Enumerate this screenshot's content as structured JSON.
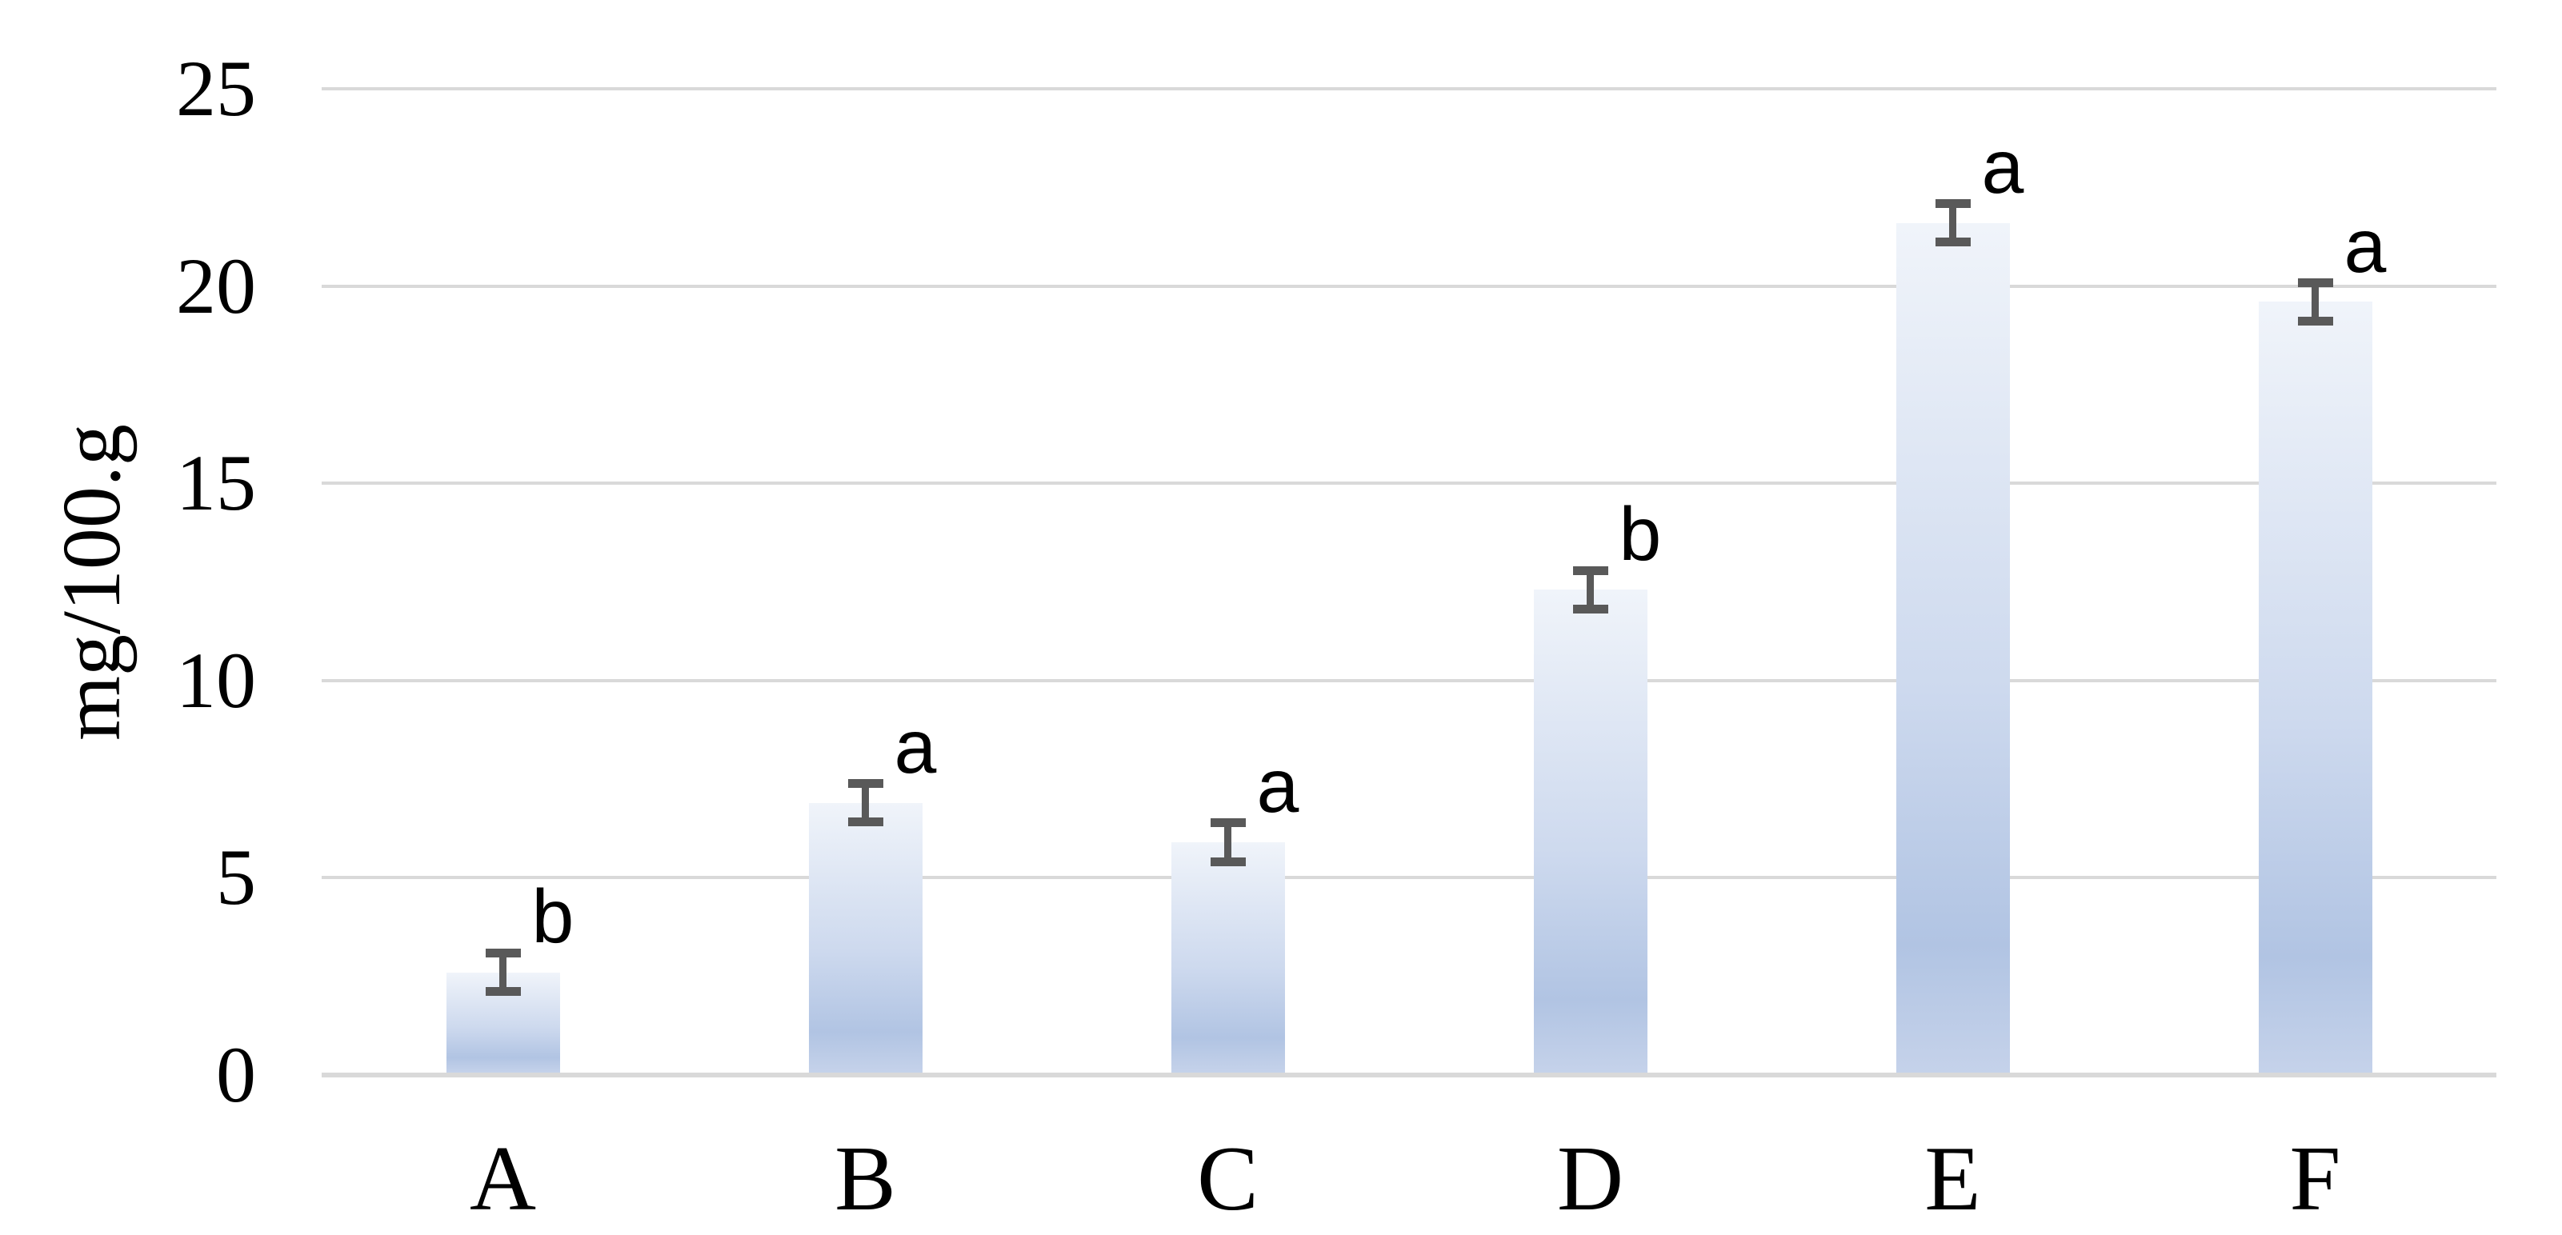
{
  "chart_data": {
    "type": "bar",
    "title": "",
    "categories": [
      "A",
      "B",
      "C",
      "D",
      "E",
      "F"
    ],
    "series": [
      {
        "name": "mg/100.g",
        "values": [
          2.6,
          6.9,
          5.9,
          12.3,
          21.6,
          19.6
        ],
        "errors": [
          0.5,
          0.5,
          0.5,
          0.5,
          0.5,
          0.5
        ],
        "sig_letters": [
          "b",
          "a",
          "a",
          "b",
          "a",
          "a"
        ]
      }
    ],
    "xlabel": "",
    "ylabel": "mg/100.g",
    "yticks": [
      0,
      5,
      10,
      15,
      20,
      25
    ],
    "ylim": [
      0,
      25
    ],
    "grid": true,
    "legend_position": "none"
  },
  "colors": {
    "background": "#ffffff",
    "bar_gradient_top": "#f0f4fa",
    "bar_gradient_mid": "#cdd9ee",
    "bar_gradient_low": "#b1c4e3",
    "bar_gradient_bottom": "#c5d2ea",
    "gridline": "#d9d9d9",
    "axis_line": "#d9d9d9",
    "error_bar": "#595959",
    "text": "#000000"
  }
}
